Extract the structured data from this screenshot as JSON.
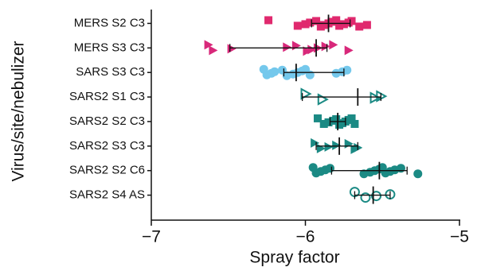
{
  "chart_data": {
    "type": "dot",
    "x_label": "Spray factor",
    "y_label": "Virus/site/nebulizer",
    "categories": [
      "MERS S2 C3",
      "MERS S3 C3",
      "SARS S3 C3",
      "SARS2 S1 C3",
      "SARS2 S2 C3",
      "SARS2 S3 C3",
      "SARS2 S2 C6",
      "SARS2 S4 AS"
    ],
    "colors": [
      "#e0296e",
      "#d8287a",
      "#74c8ec",
      "#1b8a84",
      "#1b8a84",
      "#1b8a84",
      "#1b8a84",
      "#1b8a84"
    ],
    "markers": [
      "square",
      "triangle",
      "circle",
      "triangle-open",
      "square",
      "triangle",
      "circle",
      "circle-open"
    ],
    "points": [
      [
        -6.24,
        -6.05,
        -6.0,
        -5.97,
        -5.93,
        -5.9,
        -5.88,
        -5.85,
        -5.83,
        -5.8,
        -5.78,
        -5.75,
        -5.72,
        -5.7,
        -5.65,
        -5.6
      ],
      [
        -6.63,
        -6.6,
        -6.48,
        -6.12,
        -6.06,
        -5.99,
        -5.96,
        -5.92,
        -5.87,
        -5.82,
        -5.72
      ],
      [
        -6.27,
        -6.25,
        -6.22,
        -6.2,
        -6.15,
        -6.12,
        -6.08,
        -6.05,
        -6.02,
        -6.0,
        -5.97,
        -5.8,
        -5.76,
        -5.73
      ],
      [
        -6.0,
        -5.89,
        -5.55,
        -5.51
      ],
      [
        -5.92,
        -5.88,
        -5.85,
        -5.82,
        -5.8,
        -5.78,
        -5.76,
        -5.74,
        -5.72,
        -5.7,
        -5.68
      ],
      [
        -5.94,
        -5.9,
        -5.85,
        -5.8,
        -5.72,
        -5.68,
        -5.66
      ],
      [
        -5.95,
        -5.93,
        -5.9,
        -5.87,
        -5.84,
        -5.62,
        -5.58,
        -5.55,
        -5.52,
        -5.5,
        -5.48,
        -5.45,
        -5.42,
        -5.38,
        -5.27
      ],
      [
        -5.68,
        -5.61,
        -5.54,
        -5.45
      ]
    ],
    "means": [
      -5.85,
      -5.93,
      -6.06,
      -5.66,
      -5.79,
      -5.78,
      -5.52,
      -5.56
    ],
    "lower": [
      -5.96,
      -6.49,
      -6.14,
      -6.02,
      -5.84,
      -5.93,
      -5.83,
      -5.68
    ],
    "upper": [
      -5.71,
      -5.86,
      -5.75,
      -5.51,
      -5.74,
      -5.66,
      -5.34,
      -5.45
    ],
    "xlim": [
      -7,
      -5
    ],
    "xticks": [
      {
        "value": -7,
        "label": "−7"
      },
      {
        "value": -6,
        "label": "−6"
      },
      {
        "value": -5,
        "label": "−5"
      }
    ]
  }
}
